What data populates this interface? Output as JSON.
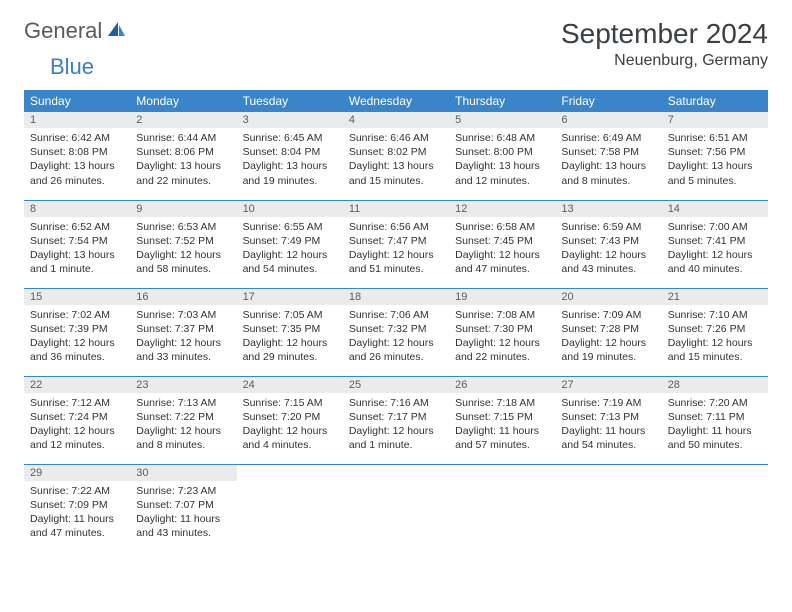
{
  "logo": {
    "part1": "General",
    "part2": "Blue"
  },
  "title": "September 2024",
  "location": "Neuenburg, Germany",
  "colors": {
    "header_bg": "#3a84c9",
    "header_fg": "#ffffff",
    "daynum_bg": "#e9ebec",
    "rule": "#3a84c9",
    "logo_gray": "#555b61",
    "logo_blue": "#3a7fc4"
  },
  "weekdays": [
    "Sunday",
    "Monday",
    "Tuesday",
    "Wednesday",
    "Thursday",
    "Friday",
    "Saturday"
  ],
  "days": [
    {
      "n": "1",
      "sr": "Sunrise: 6:42 AM",
      "ss": "Sunset: 8:08 PM",
      "dl": "Daylight: 13 hours and 26 minutes."
    },
    {
      "n": "2",
      "sr": "Sunrise: 6:44 AM",
      "ss": "Sunset: 8:06 PM",
      "dl": "Daylight: 13 hours and 22 minutes."
    },
    {
      "n": "3",
      "sr": "Sunrise: 6:45 AM",
      "ss": "Sunset: 8:04 PM",
      "dl": "Daylight: 13 hours and 19 minutes."
    },
    {
      "n": "4",
      "sr": "Sunrise: 6:46 AM",
      "ss": "Sunset: 8:02 PM",
      "dl": "Daylight: 13 hours and 15 minutes."
    },
    {
      "n": "5",
      "sr": "Sunrise: 6:48 AM",
      "ss": "Sunset: 8:00 PM",
      "dl": "Daylight: 13 hours and 12 minutes."
    },
    {
      "n": "6",
      "sr": "Sunrise: 6:49 AM",
      "ss": "Sunset: 7:58 PM",
      "dl": "Daylight: 13 hours and 8 minutes."
    },
    {
      "n": "7",
      "sr": "Sunrise: 6:51 AM",
      "ss": "Sunset: 7:56 PM",
      "dl": "Daylight: 13 hours and 5 minutes."
    },
    {
      "n": "8",
      "sr": "Sunrise: 6:52 AM",
      "ss": "Sunset: 7:54 PM",
      "dl": "Daylight: 13 hours and 1 minute."
    },
    {
      "n": "9",
      "sr": "Sunrise: 6:53 AM",
      "ss": "Sunset: 7:52 PM",
      "dl": "Daylight: 12 hours and 58 minutes."
    },
    {
      "n": "10",
      "sr": "Sunrise: 6:55 AM",
      "ss": "Sunset: 7:49 PM",
      "dl": "Daylight: 12 hours and 54 minutes."
    },
    {
      "n": "11",
      "sr": "Sunrise: 6:56 AM",
      "ss": "Sunset: 7:47 PM",
      "dl": "Daylight: 12 hours and 51 minutes."
    },
    {
      "n": "12",
      "sr": "Sunrise: 6:58 AM",
      "ss": "Sunset: 7:45 PM",
      "dl": "Daylight: 12 hours and 47 minutes."
    },
    {
      "n": "13",
      "sr": "Sunrise: 6:59 AM",
      "ss": "Sunset: 7:43 PM",
      "dl": "Daylight: 12 hours and 43 minutes."
    },
    {
      "n": "14",
      "sr": "Sunrise: 7:00 AM",
      "ss": "Sunset: 7:41 PM",
      "dl": "Daylight: 12 hours and 40 minutes."
    },
    {
      "n": "15",
      "sr": "Sunrise: 7:02 AM",
      "ss": "Sunset: 7:39 PM",
      "dl": "Daylight: 12 hours and 36 minutes."
    },
    {
      "n": "16",
      "sr": "Sunrise: 7:03 AM",
      "ss": "Sunset: 7:37 PM",
      "dl": "Daylight: 12 hours and 33 minutes."
    },
    {
      "n": "17",
      "sr": "Sunrise: 7:05 AM",
      "ss": "Sunset: 7:35 PM",
      "dl": "Daylight: 12 hours and 29 minutes."
    },
    {
      "n": "18",
      "sr": "Sunrise: 7:06 AM",
      "ss": "Sunset: 7:32 PM",
      "dl": "Daylight: 12 hours and 26 minutes."
    },
    {
      "n": "19",
      "sr": "Sunrise: 7:08 AM",
      "ss": "Sunset: 7:30 PM",
      "dl": "Daylight: 12 hours and 22 minutes."
    },
    {
      "n": "20",
      "sr": "Sunrise: 7:09 AM",
      "ss": "Sunset: 7:28 PM",
      "dl": "Daylight: 12 hours and 19 minutes."
    },
    {
      "n": "21",
      "sr": "Sunrise: 7:10 AM",
      "ss": "Sunset: 7:26 PM",
      "dl": "Daylight: 12 hours and 15 minutes."
    },
    {
      "n": "22",
      "sr": "Sunrise: 7:12 AM",
      "ss": "Sunset: 7:24 PM",
      "dl": "Daylight: 12 hours and 12 minutes."
    },
    {
      "n": "23",
      "sr": "Sunrise: 7:13 AM",
      "ss": "Sunset: 7:22 PM",
      "dl": "Daylight: 12 hours and 8 minutes."
    },
    {
      "n": "24",
      "sr": "Sunrise: 7:15 AM",
      "ss": "Sunset: 7:20 PM",
      "dl": "Daylight: 12 hours and 4 minutes."
    },
    {
      "n": "25",
      "sr": "Sunrise: 7:16 AM",
      "ss": "Sunset: 7:17 PM",
      "dl": "Daylight: 12 hours and 1 minute."
    },
    {
      "n": "26",
      "sr": "Sunrise: 7:18 AM",
      "ss": "Sunset: 7:15 PM",
      "dl": "Daylight: 11 hours and 57 minutes."
    },
    {
      "n": "27",
      "sr": "Sunrise: 7:19 AM",
      "ss": "Sunset: 7:13 PM",
      "dl": "Daylight: 11 hours and 54 minutes."
    },
    {
      "n": "28",
      "sr": "Sunrise: 7:20 AM",
      "ss": "Sunset: 7:11 PM",
      "dl": "Daylight: 11 hours and 50 minutes."
    },
    {
      "n": "29",
      "sr": "Sunrise: 7:22 AM",
      "ss": "Sunset: 7:09 PM",
      "dl": "Daylight: 11 hours and 47 minutes."
    },
    {
      "n": "30",
      "sr": "Sunrise: 7:23 AM",
      "ss": "Sunset: 7:07 PM",
      "dl": "Daylight: 11 hours and 43 minutes."
    }
  ]
}
